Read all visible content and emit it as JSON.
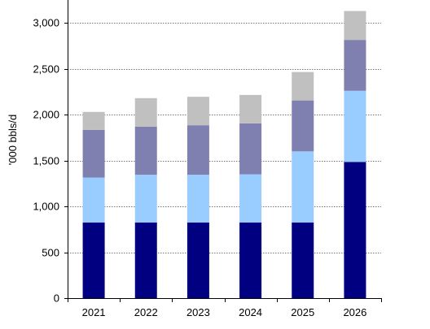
{
  "chart_data": {
    "type": "bar",
    "stacked": true,
    "categories": [
      "2021",
      "2022",
      "2023",
      "2024",
      "2025",
      "2026"
    ],
    "series": [
      {
        "values": [
          825,
          825,
          825,
          825,
          825,
          1485
        ],
        "color": "#000080"
      },
      {
        "values": [
          490,
          520,
          520,
          525,
          775,
          775
        ],
        "color": "#99CCFF"
      },
      {
        "values": [
          520,
          525,
          540,
          555,
          555,
          555
        ],
        "color": "#8080B0"
      },
      {
        "values": [
          195,
          310,
          310,
          310,
          310,
          315
        ],
        "color": "#C0C0C0"
      }
    ],
    "ylabel": "'000 bbls/d",
    "ylim": [
      0,
      3250
    ],
    "yticks": [
      0,
      500,
      1000,
      1500,
      2000,
      2500,
      3000
    ],
    "ytick_labels": [
      "0",
      "500",
      "1,000",
      "1,500",
      "2,000",
      "2,500",
      "3,000"
    ],
    "grid": true,
    "gridline_color": "#000000"
  }
}
